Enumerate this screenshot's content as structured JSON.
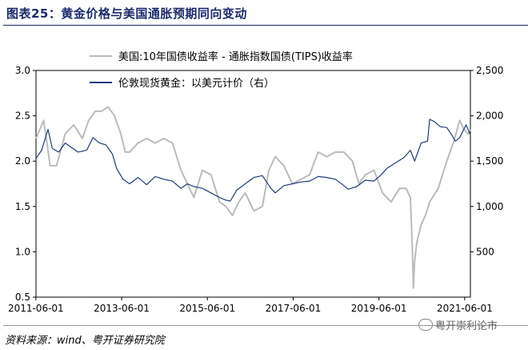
{
  "figure": {
    "title": "图表25：黄金价格与美国通胀预期同向变动",
    "source": "资料来源：wind、粤开证券研究院",
    "watermark": "粤开崇利论市"
  },
  "chart_data": {
    "type": "line",
    "title": "图表25：黄金价格与美国通胀预期同向变动",
    "x_ticks": [
      "2011-06-01",
      "2013-06-01",
      "2015-06-01",
      "2017-06-01",
      "2019-06-01",
      "2021-06-01"
    ],
    "x_range": [
      2011.42,
      2021.55
    ],
    "y_left": {
      "ticks": [
        "0.5",
        "1.0",
        "1.5",
        "2.0",
        "2.5",
        "3.0"
      ],
      "range": [
        0.5,
        3.0
      ]
    },
    "y_right": {
      "ticks": [
        "500",
        "1,000",
        "1,500",
        "2,000",
        "2,500"
      ],
      "range": [
        0,
        2500
      ]
    },
    "legend_placement": "top-center",
    "series": [
      {
        "name": "美国:10年国债收益率 - 通胀指数国债(TIPS)收益率",
        "axis": "left",
        "color": "#bbbbbb",
        "x": [
          2011.42,
          2011.6,
          2011.75,
          2011.9,
          2012.1,
          2012.3,
          2012.5,
          2012.65,
          2012.8,
          2012.95,
          2013.1,
          2013.25,
          2013.4,
          2013.5,
          2013.6,
          2013.8,
          2014.0,
          2014.2,
          2014.4,
          2014.6,
          2014.8,
          2014.95,
          2015.1,
          2015.3,
          2015.5,
          2015.7,
          2015.85,
          2016.0,
          2016.15,
          2016.3,
          2016.5,
          2016.7,
          2016.85,
          2017.0,
          2017.2,
          2017.4,
          2017.6,
          2017.8,
          2018.0,
          2018.2,
          2018.4,
          2018.6,
          2018.8,
          2018.95,
          2019.1,
          2019.3,
          2019.5,
          2019.7,
          2019.9,
          2020.05,
          2020.15,
          2020.2,
          2020.22,
          2020.25,
          2020.3,
          2020.4,
          2020.5,
          2020.6,
          2020.8,
          2021.0,
          2021.15,
          2021.3,
          2021.4,
          2021.5,
          2021.55
        ],
        "y": [
          2.25,
          2.45,
          1.95,
          1.95,
          2.3,
          2.4,
          2.25,
          2.45,
          2.55,
          2.55,
          2.6,
          2.5,
          2.3,
          2.1,
          2.1,
          2.2,
          2.25,
          2.2,
          2.25,
          2.2,
          1.9,
          1.75,
          1.6,
          1.9,
          1.85,
          1.55,
          1.5,
          1.4,
          1.55,
          1.65,
          1.45,
          1.5,
          1.9,
          2.05,
          1.95,
          1.75,
          1.8,
          1.85,
          2.1,
          2.05,
          2.1,
          2.1,
          2.0,
          1.75,
          1.85,
          1.9,
          1.65,
          1.55,
          1.7,
          1.7,
          1.6,
          1.0,
          0.6,
          0.9,
          1.1,
          1.3,
          1.4,
          1.55,
          1.7,
          2.0,
          2.2,
          2.45,
          2.35,
          2.3,
          2.35
        ]
      },
      {
        "name": "伦敦现货黄金：以美元计价（右）",
        "axis": "right",
        "color": "#1f3a7a",
        "x": [
          2011.42,
          2011.55,
          2011.7,
          2011.8,
          2011.95,
          2012.1,
          2012.25,
          2012.4,
          2012.6,
          2012.75,
          2012.9,
          2013.05,
          2013.2,
          2013.3,
          2013.45,
          2013.6,
          2013.8,
          2014.0,
          2014.2,
          2014.4,
          2014.6,
          2014.8,
          2014.95,
          2015.1,
          2015.3,
          2015.5,
          2015.7,
          2015.85,
          2015.95,
          2016.1,
          2016.3,
          2016.5,
          2016.7,
          2016.9,
          2017.0,
          2017.2,
          2017.4,
          2017.6,
          2017.8,
          2018.0,
          2018.2,
          2018.4,
          2018.6,
          2018.7,
          2018.9,
          2019.1,
          2019.3,
          2019.45,
          2019.6,
          2019.8,
          2020.0,
          2020.15,
          2020.25,
          2020.4,
          2020.55,
          2020.6,
          2020.7,
          2020.85,
          2021.0,
          2021.1,
          2021.2,
          2021.3,
          2021.45,
          2021.55
        ],
        "y": [
          1530,
          1620,
          1850,
          1640,
          1600,
          1700,
          1650,
          1600,
          1620,
          1760,
          1700,
          1680,
          1580,
          1420,
          1300,
          1250,
          1320,
          1240,
          1330,
          1300,
          1280,
          1200,
          1250,
          1220,
          1200,
          1150,
          1100,
          1070,
          1060,
          1180,
          1250,
          1320,
          1340,
          1200,
          1150,
          1230,
          1250,
          1270,
          1280,
          1330,
          1320,
          1300,
          1230,
          1190,
          1220,
          1290,
          1280,
          1340,
          1420,
          1480,
          1540,
          1620,
          1500,
          1700,
          1720,
          1960,
          1940,
          1880,
          1870,
          1800,
          1720,
          1760,
          1900,
          1790
        ]
      }
    ]
  }
}
